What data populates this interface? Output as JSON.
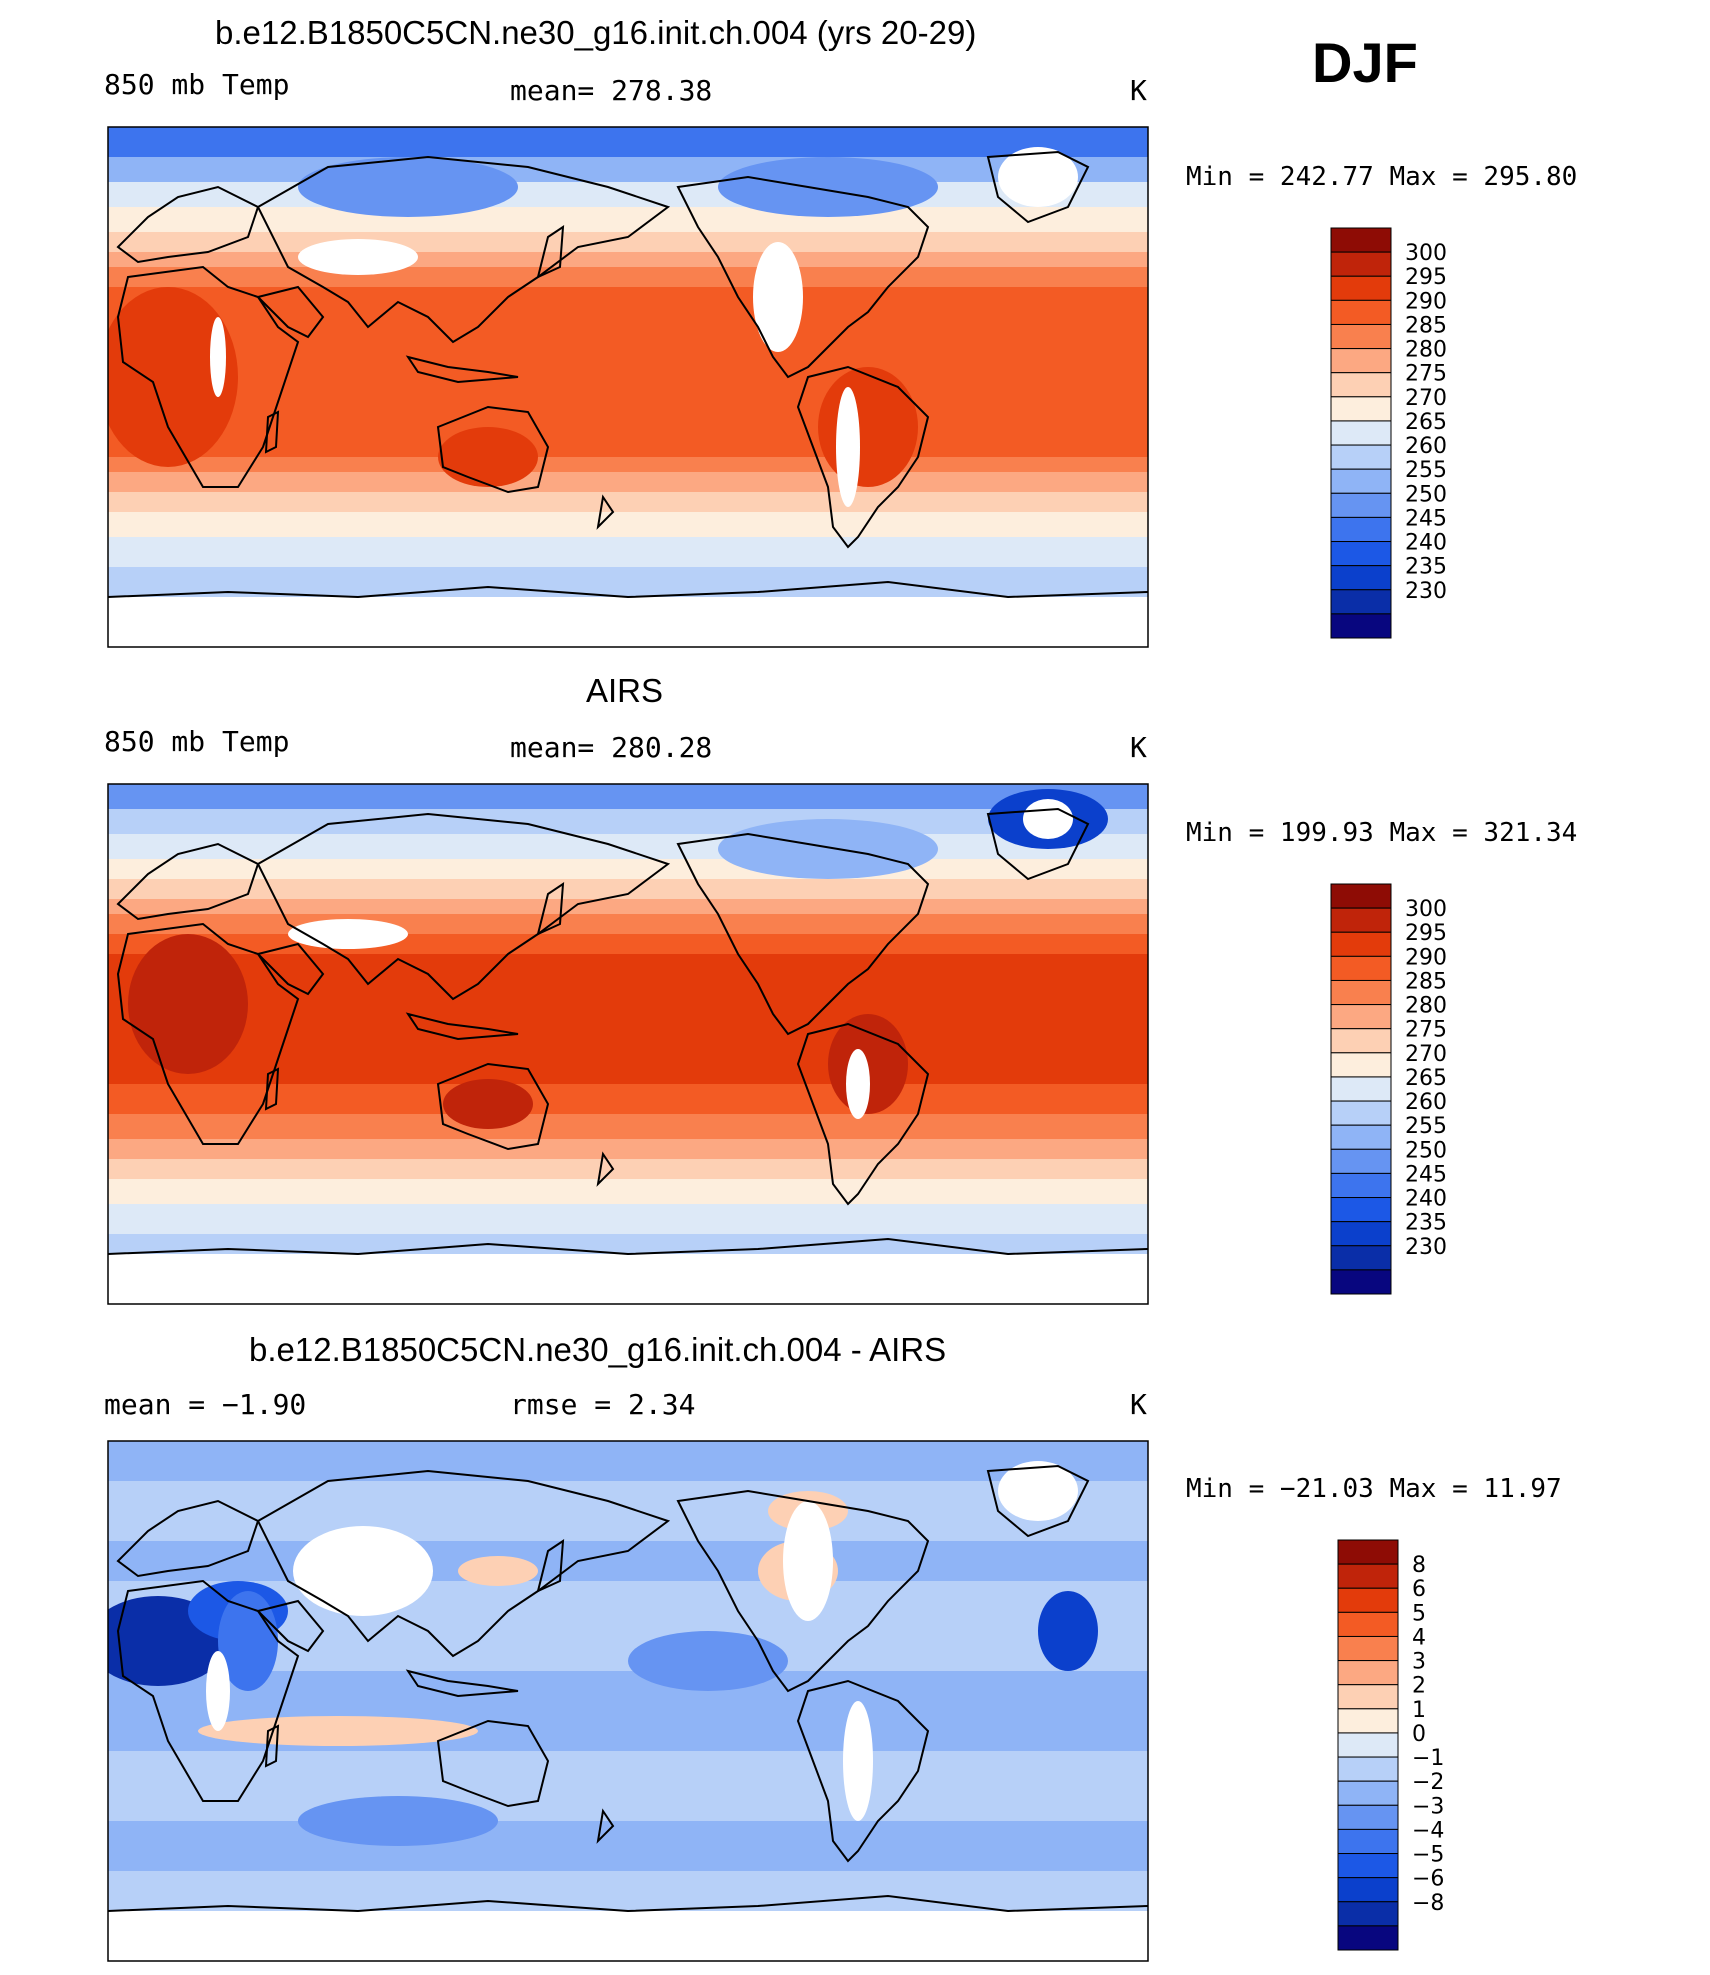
{
  "season": "DJF",
  "units": "K",
  "palette_abs": [
    "#08067f",
    "#0a2ea8",
    "#0b40cc",
    "#1c58e6",
    "#3d74ee",
    "#6694f2",
    "#8fb4f6",
    "#b7d0f8",
    "#dde9f7",
    "#fdeedd",
    "#fdd0b4",
    "#fca882",
    "#f9804e",
    "#f35b24",
    "#e33b0b",
    "#c0240a",
    "#8e0c05"
  ],
  "palette_diff": [
    "#08067f",
    "#0a2ea8",
    "#0b40cc",
    "#1c58e6",
    "#3d74ee",
    "#6694f2",
    "#8fb4f6",
    "#b7d0f8",
    "#dde9f7",
    "#fdeedd",
    "#fdd0b4",
    "#fca882",
    "#f9804e",
    "#f35b24",
    "#e33b0b",
    "#c0240a",
    "#8e0c05"
  ],
  "panels": [
    {
      "title": "b.e12.B1850C5CN.ne30_g16.init.ch.004 (yrs 20-29)",
      "left_label": "850 mb Temp",
      "center_label": "mean=  278.38",
      "right_label": "K",
      "minmax": "Min  =  242.77  Max  =  295.80",
      "colorbar_labels": [
        "300",
        "295",
        "290",
        "285",
        "280",
        "275",
        "270",
        "265",
        "260",
        "255",
        "250",
        "245",
        "240",
        "235",
        "230"
      ]
    },
    {
      "title": "AIRS",
      "left_label": "850 mb Temp",
      "center_label": "mean=  280.28",
      "right_label": "K",
      "minmax": "Min  =  199.93  Max  =  321.34",
      "colorbar_labels": [
        "300",
        "295",
        "290",
        "285",
        "280",
        "275",
        "270",
        "265",
        "260",
        "255",
        "250",
        "245",
        "240",
        "235",
        "230"
      ]
    },
    {
      "title": "b.e12.B1850C5CN.ne30_g16.init.ch.004 - AIRS",
      "left_label": "mean  =    −1.90",
      "center_label": "rmse  =     2.34",
      "right_label": "K",
      "minmax": "Min  =  −21.03  Max  =    11.97",
      "colorbar_labels": [
        "8",
        "6",
        "5",
        "4",
        "3",
        "2",
        "1",
        "0",
        "−1",
        "−2",
        "−3",
        "−4",
        "−5",
        "−6",
        "−8"
      ]
    }
  ]
}
